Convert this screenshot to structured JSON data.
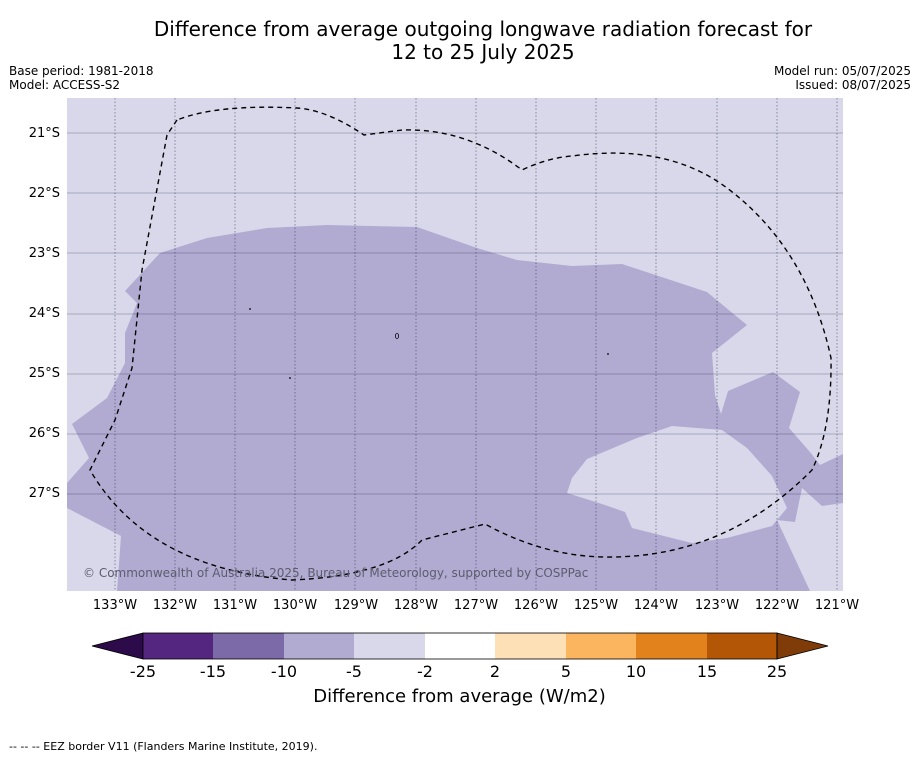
{
  "header": {
    "title_line1": "Difference from average outgoing longwave radiation forecast for",
    "title_line2": "12 to 25 July 2025",
    "base_period": "Base period: 1981-2018",
    "model": "Model: ACCESS-S2",
    "model_run": "Model run: 05/07/2025",
    "issued": "Issued: 08/07/2025"
  },
  "map": {
    "latitude_labels": [
      "21°S",
      "22°S",
      "23°S",
      "24°S",
      "25°S",
      "26°S",
      "27°S"
    ],
    "longitude_labels": [
      "133°W",
      "132°W",
      "131°W",
      "130°W",
      "129°W",
      "128°W",
      "127°W",
      "126°W",
      "125°W",
      "124°W",
      "123°W",
      "122°W",
      "121°W"
    ],
    "background_category": "-5 to -2",
    "dominant_category": "-10 to -5",
    "copyright": "© Commonwealth of Australia 2025, Bureau of Meteorology, supported by COSPPac"
  },
  "colorbar": {
    "ticks": [
      "-25",
      "-15",
      "-10",
      "-5",
      "-2",
      "2",
      "5",
      "10",
      "15",
      "25"
    ],
    "colors": {
      "lt_-25": "#2d0a4a",
      "-25_-15": "#55267f",
      "-15_-10": "#7c6aa8",
      "-10_-5": "#b1abd1",
      "-5_-2": "#d8d8ea",
      "-2_2": "#ffffff",
      "2_5": "#fde0b5",
      "5_10": "#fcb55f",
      "10_15": "#e1821c",
      "15_25": "#b35706",
      "gt_25": "#7f3c08"
    },
    "label": "Difference from average (W/m2)"
  },
  "footer": {
    "legend_note": "--  --  -- EEZ border V11 (Flanders Marine Institute, 2019)."
  }
}
